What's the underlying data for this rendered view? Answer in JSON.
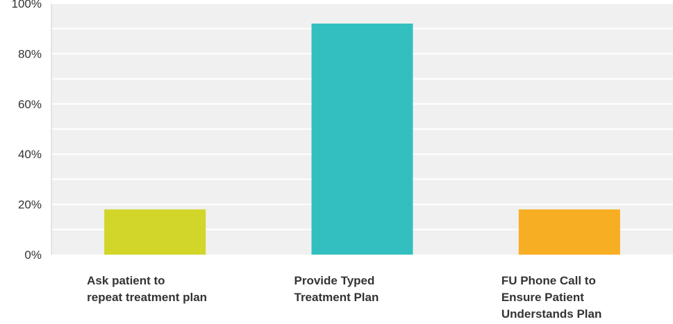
{
  "chart_data": {
    "type": "bar",
    "categories": [
      [
        "Ask patient to",
        "repeat treatment plan"
      ],
      [
        "Provide Typed",
        "Treatment Plan"
      ],
      [
        "FU Phone Call to",
        "Ensure Patient",
        "Understands Plan"
      ]
    ],
    "values": [
      18,
      92,
      18
    ],
    "bar_colors": [
      "#d1d629",
      "#33bfc0",
      "#f8ae22"
    ],
    "yticks": [
      "0%",
      "20%",
      "40%",
      "60%",
      "80%",
      "100%"
    ],
    "ylim": [
      0,
      100
    ],
    "grid": true,
    "background": "#f0f0f0",
    "title": "",
    "xlabel": "",
    "ylabel": ""
  }
}
